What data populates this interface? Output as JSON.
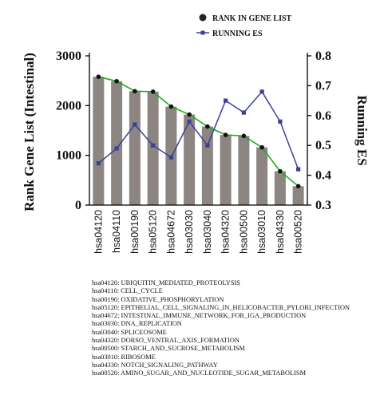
{
  "chart_data": {
    "type": "bar",
    "categories": [
      "hsa04120",
      "hsa04110",
      "hsa00190",
      "hsa05120",
      "hsa04672",
      "hsa03030",
      "hsa03040",
      "hsa04320",
      "hsa00500",
      "hsa03010",
      "hsa04330",
      "hsa00520"
    ],
    "series": [
      {
        "name": "RANK IN GENE LIST",
        "axis": "left",
        "values": [
          2580,
          2490,
          2290,
          2280,
          1980,
          1820,
          1580,
          1410,
          1390,
          1160,
          680,
          380
        ]
      },
      {
        "name": "RUNNING ES",
        "axis": "right",
        "values": [
          0.44,
          0.49,
          0.57,
          0.5,
          0.46,
          0.58,
          0.5,
          0.65,
          0.61,
          0.68,
          0.58,
          0.42
        ]
      }
    ],
    "ylabel": "Rank Gene List (Intestinal)",
    "y2label": "Running ES",
    "ylim": [
      0,
      3000
    ],
    "y2lim": [
      0.3,
      0.8
    ],
    "yticks": [
      "0",
      "1000",
      "2000",
      "3000"
    ],
    "y2ticks": [
      "0.3",
      "0.4",
      "0.5",
      "0.6",
      "0.7",
      "0.8"
    ],
    "legend_position": "top-right",
    "colors": {
      "bar": "#8c8581",
      "bar_top": "#111111",
      "trend": "#1aaa1a",
      "es": "#3b3f98"
    }
  },
  "key_list": [
    "hsa04120: UBIQUITIN_MEDIATED_PROTEOLYSIS",
    "hsa04110: CELL_CYCLE",
    "hsa00190: OXIDATIVE_PHOSPHORYLATION",
    "hsa05120: EPITHELIAL_CELL_SIGNALING_IN_HELICOBACTER_PYLORI_INFECTION",
    "hsa04672: INTESTINAL_IMMUNE_NETWORK_FOR_IGA_PRODUCTION",
    "hsa03030: DNA_REPLICATION",
    "hsa03040: SPLICEOSOME",
    "hsa04320: DORSO_VENTRAL_AXIS_FORMATION",
    "hsa00500: STARCH_AND_SUCROSE_METABOLISM",
    "hsa03010: RIBOSOME",
    "hsa04330: NOTCH_SIGNALING_PATHWAY",
    "hsa00520: AMINO_SUGAR_AND_NUCLEOTIDE_SUGAR_METABOLISM"
  ]
}
